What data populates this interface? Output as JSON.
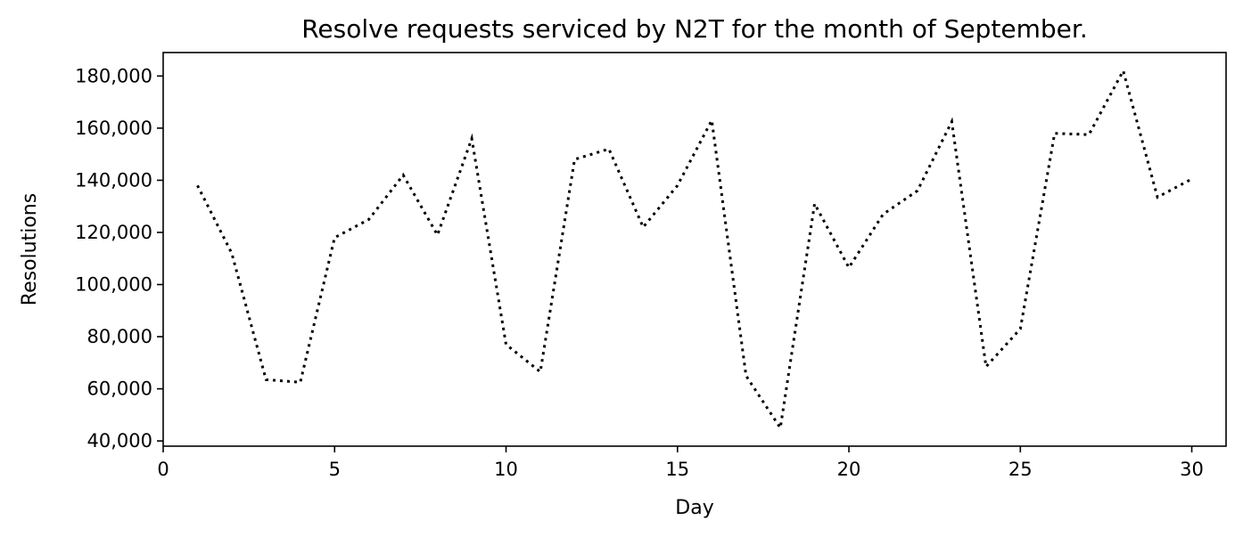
{
  "chart_data": {
    "type": "line",
    "title": "Resolve requests serviced by N2T for the month of September.",
    "xlabel": "Day",
    "ylabel": "Resolutions",
    "xlim": [
      0,
      31
    ],
    "ylim": [
      38000,
      189000
    ],
    "xticks": [
      0,
      5,
      10,
      15,
      20,
      25,
      30
    ],
    "xtick_labels": [
      "0",
      "5",
      "10",
      "15",
      "20",
      "25",
      "30"
    ],
    "yticks": [
      40000,
      60000,
      80000,
      100000,
      120000,
      140000,
      160000,
      180000
    ],
    "ytick_labels": [
      "40,000",
      "60,000",
      "80,000",
      "100,000",
      "120,000",
      "140,000",
      "160,000",
      "180,000"
    ],
    "grid": false,
    "legend": "none",
    "series": [
      {
        "line_style": "dotted",
        "color": "#000000",
        "x": [
          1,
          2,
          3,
          4,
          5,
          6,
          7,
          8,
          9,
          10,
          11,
          12,
          13,
          14,
          15,
          16,
          17,
          18,
          19,
          20,
          21,
          22,
          23,
          24,
          25,
          26,
          27,
          28,
          29,
          30
        ],
        "y": [
          138000,
          112000,
          63500,
          62500,
          118000,
          125000,
          142000,
          119000,
          156000,
          77000,
          66500,
          148000,
          152000,
          122000,
          138000,
          163000,
          65000,
          45000,
          131000,
          106500,
          127000,
          136000,
          162500,
          68500,
          83000,
          158000,
          157500,
          182000,
          133500,
          140500
        ]
      }
    ]
  }
}
